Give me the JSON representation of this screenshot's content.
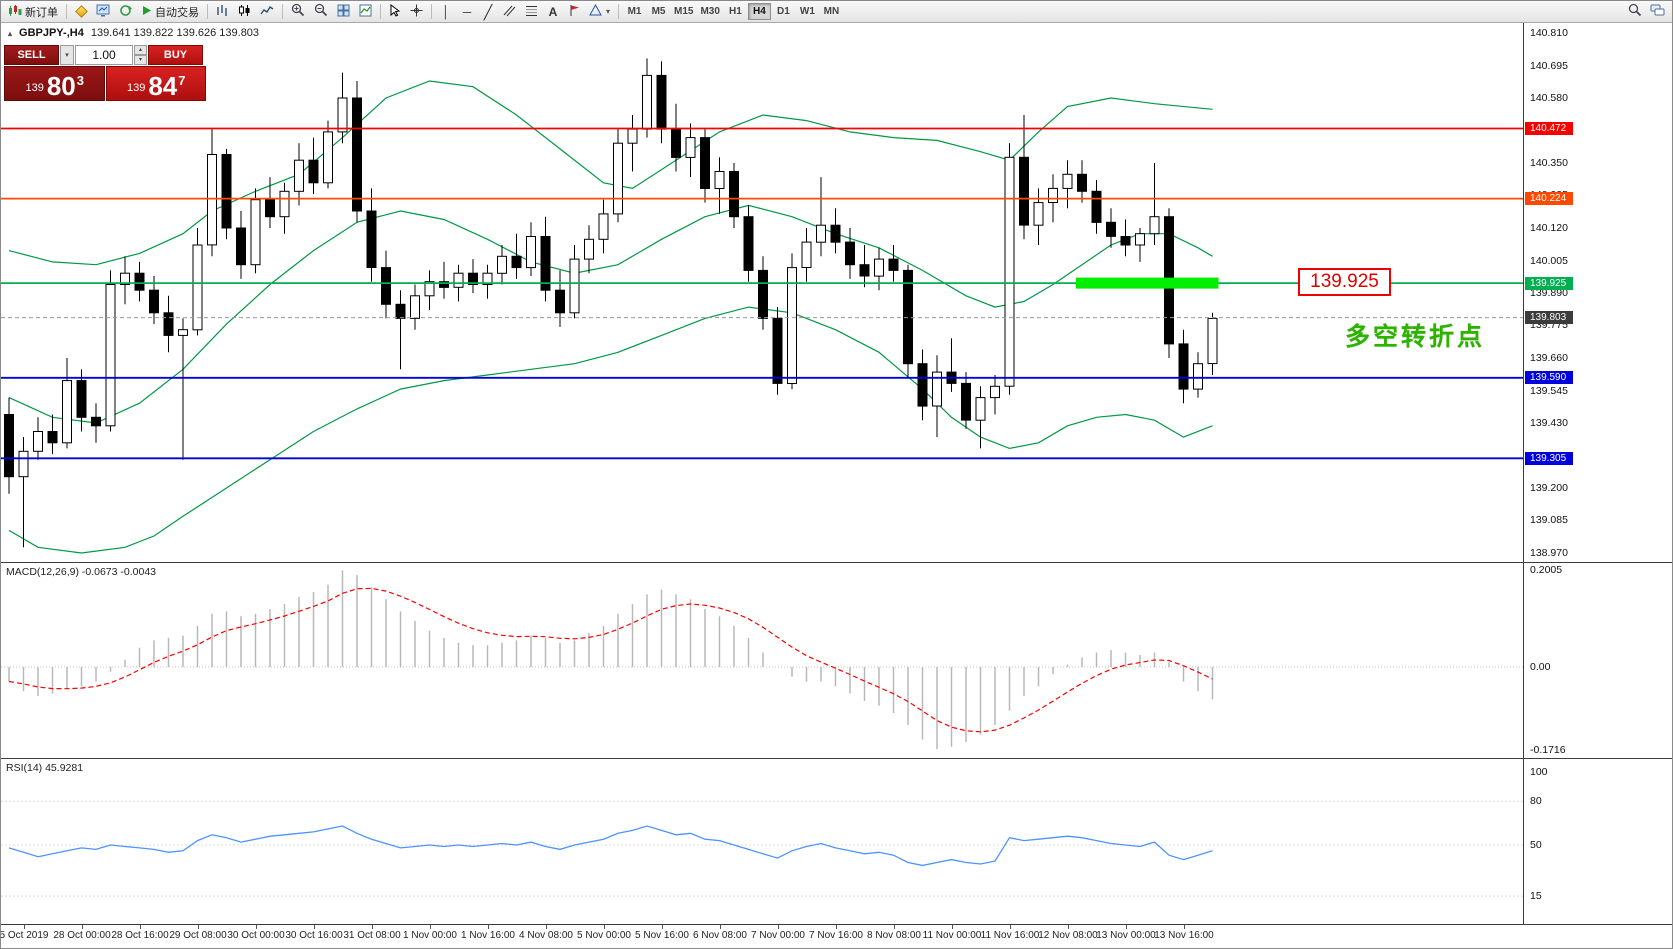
{
  "toolbar": {
    "new_order": "新订单",
    "autotrade": "自动交易",
    "timeframes": [
      "M1",
      "M5",
      "M15",
      "M30",
      "H1",
      "H4",
      "D1",
      "W1",
      "MN"
    ],
    "active_timeframe": "H4"
  },
  "icons": {
    "dropdown_arrow": "▾",
    "spin_up": "▴",
    "spin_down": "▾",
    "vertical_line": "│",
    "horizontal_line": "─",
    "trendline": "╱",
    "text_tool": "A",
    "symbol_marker": "▴"
  },
  "symbol_header": {
    "symbol": "GBPJPY-,H4",
    "ohlc": "139.641 139.822 139.626 139.803"
  },
  "trade_panel": {
    "sell_label": "SELL",
    "buy_label": "BUY",
    "volume": "1.00",
    "sell_price": {
      "prefix": "139",
      "big": "80",
      "sup": "3"
    },
    "buy_price": {
      "prefix": "139",
      "big": "84",
      "sup": "7"
    }
  },
  "annotations": {
    "price_box": "139.925",
    "turning_point": "多空转折点"
  },
  "chart_data": {
    "type": "candlestick",
    "symbol": "GBPJPY",
    "timeframe": "H4",
    "price_axis": {
      "min": 138.97,
      "max": 140.81,
      "ticks": [
        "140.810",
        "140.695",
        "140.580",
        "140.465",
        "140.350",
        "140.235",
        "140.120",
        "140.005",
        "139.890",
        "139.775",
        "139.660",
        "139.545",
        "139.430",
        "139.315",
        "139.200",
        "139.085",
        "138.970"
      ]
    },
    "candle_colors": {
      "up": "#ffffff",
      "down": "#000000",
      "outline": "#000000"
    },
    "levels": [
      {
        "price": 140.472,
        "label": "140.472",
        "color": "#f80000"
      },
      {
        "price": 140.224,
        "label": "140.224",
        "color": "#ff4800"
      },
      {
        "price": 139.925,
        "label": "139.925",
        "color": "#00b050"
      },
      {
        "price": 139.803,
        "label": "139.803",
        "color": "#3c3c3c",
        "style": "dashed",
        "line_color": "#9a9a9a"
      },
      {
        "price": 139.59,
        "label": "139.590",
        "color": "#0000dd"
      },
      {
        "price": 139.305,
        "label": "139.305",
        "color": "#0000dd"
      }
    ],
    "highlight": {
      "from_index": 74,
      "to_index": 83,
      "price": 139.925,
      "color": "#00ee00"
    },
    "candles": [
      [
        139.46,
        139.52,
        139.18,
        139.24
      ],
      [
        139.24,
        139.38,
        138.99,
        139.33
      ],
      [
        139.33,
        139.45,
        139.3,
        139.4
      ],
      [
        139.4,
        139.46,
        139.32,
        139.36
      ],
      [
        139.36,
        139.66,
        139.34,
        139.58
      ],
      [
        139.58,
        139.62,
        139.4,
        139.45
      ],
      [
        139.45,
        139.5,
        139.36,
        139.42
      ],
      [
        139.42,
        139.97,
        139.4,
        139.92
      ],
      [
        139.92,
        140.02,
        139.85,
        139.96
      ],
      [
        139.96,
        140.0,
        139.86,
        139.9
      ],
      [
        139.9,
        139.95,
        139.78,
        139.82
      ],
      [
        139.82,
        139.88,
        139.68,
        139.74
      ],
      [
        139.74,
        139.8,
        139.3,
        139.76
      ],
      [
        139.76,
        140.12,
        139.74,
        140.06
      ],
      [
        140.06,
        140.47,
        140.02,
        140.38
      ],
      [
        140.38,
        140.4,
        140.08,
        140.12
      ],
      [
        140.12,
        140.18,
        139.94,
        139.99
      ],
      [
        139.99,
        140.26,
        139.96,
        140.22
      ],
      [
        140.22,
        140.3,
        140.12,
        140.16
      ],
      [
        140.16,
        140.28,
        140.1,
        140.25
      ],
      [
        140.25,
        140.42,
        140.2,
        140.36
      ],
      [
        140.36,
        140.44,
        140.24,
        140.28
      ],
      [
        140.28,
        140.5,
        140.26,
        140.46
      ],
      [
        140.46,
        140.67,
        140.42,
        140.58
      ],
      [
        140.58,
        140.64,
        140.14,
        140.18
      ],
      [
        140.18,
        140.26,
        139.93,
        139.98
      ],
      [
        139.98,
        140.04,
        139.8,
        139.85
      ],
      [
        139.85,
        139.9,
        139.62,
        139.8
      ],
      [
        139.8,
        139.92,
        139.76,
        139.88
      ],
      [
        139.88,
        139.97,
        139.83,
        139.93
      ],
      [
        139.93,
        140.0,
        139.87,
        139.91
      ],
      [
        139.91,
        139.99,
        139.86,
        139.96
      ],
      [
        139.96,
        140.01,
        139.89,
        139.92
      ],
      [
        139.92,
        139.99,
        139.87,
        139.96
      ],
      [
        139.96,
        140.06,
        139.92,
        140.02
      ],
      [
        140.02,
        140.1,
        139.94,
        139.98
      ],
      [
        139.98,
        140.14,
        139.95,
        140.09
      ],
      [
        140.09,
        140.16,
        139.86,
        139.9
      ],
      [
        139.9,
        139.97,
        139.77,
        139.82
      ],
      [
        139.82,
        140.06,
        139.8,
        140.01
      ],
      [
        140.01,
        140.13,
        139.96,
        140.08
      ],
      [
        140.08,
        140.22,
        140.03,
        140.17
      ],
      [
        140.17,
        140.47,
        140.14,
        140.42
      ],
      [
        140.42,
        140.52,
        140.32,
        140.47
      ],
      [
        140.47,
        140.72,
        140.44,
        140.66
      ],
      [
        140.66,
        140.71,
        140.42,
        140.47
      ],
      [
        140.47,
        140.56,
        140.32,
        140.37
      ],
      [
        140.37,
        140.49,
        140.3,
        140.44
      ],
      [
        140.44,
        140.47,
        140.21,
        140.26
      ],
      [
        140.26,
        140.37,
        140.17,
        140.32
      ],
      [
        140.32,
        140.35,
        140.12,
        140.16
      ],
      [
        140.16,
        140.2,
        139.93,
        139.97
      ],
      [
        139.97,
        140.02,
        139.76,
        139.8
      ],
      [
        139.8,
        139.84,
        139.53,
        139.57
      ],
      [
        139.57,
        140.03,
        139.55,
        139.98
      ],
      [
        139.98,
        140.12,
        139.93,
        140.07
      ],
      [
        140.07,
        140.3,
        140.02,
        140.13
      ],
      [
        140.13,
        140.19,
        140.03,
        140.07
      ],
      [
        140.07,
        140.12,
        139.94,
        139.99
      ],
      [
        139.99,
        140.06,
        139.91,
        139.95
      ],
      [
        139.95,
        140.05,
        139.9,
        140.01
      ],
      [
        140.01,
        140.06,
        139.93,
        139.97
      ],
      [
        139.97,
        139.99,
        139.59,
        139.64
      ],
      [
        139.64,
        139.69,
        139.44,
        139.49
      ],
      [
        139.49,
        139.67,
        139.38,
        139.61
      ],
      [
        139.61,
        139.73,
        139.54,
        139.57
      ],
      [
        139.57,
        139.61,
        139.41,
        139.44
      ],
      [
        139.44,
        139.56,
        139.34,
        139.52
      ],
      [
        139.52,
        139.6,
        139.46,
        139.56
      ],
      [
        139.56,
        140.42,
        139.53,
        140.37
      ],
      [
        140.37,
        140.52,
        140.08,
        140.13
      ],
      [
        140.13,
        140.26,
        140.06,
        140.21
      ],
      [
        140.21,
        140.31,
        140.14,
        140.26
      ],
      [
        140.26,
        140.36,
        140.19,
        140.31
      ],
      [
        140.31,
        140.36,
        140.21,
        140.25
      ],
      [
        140.25,
        140.29,
        140.1,
        140.14
      ],
      [
        140.14,
        140.19,
        140.05,
        140.09
      ],
      [
        140.09,
        140.15,
        140.02,
        140.06
      ],
      [
        140.06,
        140.12,
        140.0,
        140.1
      ],
      [
        140.1,
        140.35,
        140.06,
        140.16
      ],
      [
        140.16,
        140.19,
        139.66,
        139.71
      ],
      [
        139.71,
        139.76,
        139.5,
        139.55
      ],
      [
        139.55,
        139.68,
        139.52,
        139.64
      ],
      [
        139.64,
        139.82,
        139.6,
        139.8
      ]
    ],
    "bollinger": {
      "color": "#009944",
      "upper": [
        [
          0,
          140.04
        ],
        [
          3,
          140.0
        ],
        [
          6,
          139.99
        ],
        [
          9,
          140.03
        ],
        [
          12,
          140.1
        ],
        [
          14,
          140.18
        ],
        [
          17,
          140.25
        ],
        [
          20,
          140.31
        ],
        [
          23,
          140.44
        ],
        [
          26,
          140.58
        ],
        [
          29,
          140.64
        ],
        [
          32,
          140.62
        ],
        [
          35,
          140.52
        ],
        [
          38,
          140.4
        ],
        [
          41,
          140.28
        ],
        [
          43,
          140.26
        ],
        [
          46,
          140.36
        ],
        [
          49,
          140.46
        ],
        [
          52,
          140.52
        ],
        [
          55,
          140.5
        ],
        [
          58,
          140.46
        ],
        [
          61,
          140.44
        ],
        [
          64,
          140.43
        ],
        [
          67,
          140.39
        ],
        [
          69,
          140.36
        ],
        [
          71,
          140.46
        ],
        [
          73,
          140.55
        ],
        [
          76,
          140.58
        ],
        [
          79,
          140.56
        ],
        [
          83,
          140.54
        ]
      ],
      "middle": [
        [
          0,
          139.52
        ],
        [
          3,
          139.45
        ],
        [
          6,
          139.43
        ],
        [
          9,
          139.5
        ],
        [
          12,
          139.62
        ],
        [
          15,
          139.78
        ],
        [
          18,
          139.92
        ],
        [
          21,
          140.04
        ],
        [
          24,
          140.14
        ],
        [
          27,
          140.18
        ],
        [
          30,
          140.15
        ],
        [
          33,
          140.08
        ],
        [
          36,
          140.0
        ],
        [
          39,
          139.96
        ],
        [
          42,
          139.99
        ],
        [
          45,
          140.08
        ],
        [
          48,
          140.16
        ],
        [
          51,
          140.2
        ],
        [
          54,
          140.16
        ],
        [
          57,
          140.1
        ],
        [
          60,
          140.05
        ],
        [
          63,
          139.97
        ],
        [
          66,
          139.88
        ],
        [
          68,
          139.84
        ],
        [
          70,
          139.86
        ],
        [
          72,
          139.92
        ],
        [
          74,
          139.99
        ],
        [
          76,
          140.06
        ],
        [
          78,
          140.1
        ],
        [
          80,
          140.1
        ],
        [
          82,
          140.05
        ],
        [
          83,
          140.02
        ]
      ],
      "lower": [
        [
          0,
          139.05
        ],
        [
          2,
          138.99
        ],
        [
          5,
          138.97
        ],
        [
          8,
          138.99
        ],
        [
          10,
          139.03
        ],
        [
          12,
          139.1
        ],
        [
          15,
          139.2
        ],
        [
          18,
          139.3
        ],
        [
          21,
          139.4
        ],
        [
          24,
          139.48
        ],
        [
          27,
          139.55
        ],
        [
          30,
          139.58
        ],
        [
          33,
          139.6
        ],
        [
          36,
          139.62
        ],
        [
          39,
          139.64
        ],
        [
          42,
          139.68
        ],
        [
          45,
          139.74
        ],
        [
          48,
          139.8
        ],
        [
          51,
          139.84
        ],
        [
          54,
          139.82
        ],
        [
          57,
          139.76
        ],
        [
          60,
          139.68
        ],
        [
          63,
          139.55
        ],
        [
          65,
          139.45
        ],
        [
          67,
          139.38
        ],
        [
          69,
          139.34
        ],
        [
          71,
          139.36
        ],
        [
          73,
          139.42
        ],
        [
          75,
          139.45
        ],
        [
          77,
          139.46
        ],
        [
          79,
          139.44
        ],
        [
          81,
          139.38
        ],
        [
          83,
          139.42
        ]
      ]
    },
    "macd": {
      "label": "MACD(12,26,9) -0.0673 -0.0043",
      "hist_color": "#b8b8b8",
      "signal_color": "#ff0000",
      "axis": [
        {
          "value": 0.2005,
          "label": "0.2005"
        },
        {
          "value": 0,
          "label": "0.00"
        },
        {
          "value": -0.1716,
          "label": "-0.1716"
        }
      ],
      "histogram": [
        -0.03,
        -0.05,
        -0.06,
        -0.055,
        -0.045,
        -0.04,
        -0.03,
        -0.01,
        0.015,
        0.04,
        0.055,
        0.06,
        0.065,
        0.085,
        0.11,
        0.115,
        0.105,
        0.11,
        0.12,
        0.13,
        0.145,
        0.155,
        0.17,
        0.2,
        0.19,
        0.165,
        0.14,
        0.115,
        0.095,
        0.075,
        0.06,
        0.05,
        0.045,
        0.045,
        0.05,
        0.055,
        0.065,
        0.06,
        0.05,
        0.055,
        0.07,
        0.085,
        0.11,
        0.13,
        0.15,
        0.16,
        0.15,
        0.14,
        0.12,
        0.105,
        0.085,
        0.06,
        0.03,
        0.0,
        -0.02,
        -0.03,
        -0.03,
        -0.04,
        -0.055,
        -0.07,
        -0.08,
        -0.095,
        -0.12,
        -0.15,
        -0.17,
        -0.165,
        -0.155,
        -0.14,
        -0.12,
        -0.09,
        -0.06,
        -0.04,
        -0.015,
        0.005,
        0.02,
        0.03,
        0.035,
        0.03,
        0.025,
        0.03,
        0.01,
        -0.03,
        -0.05,
        -0.067
      ]
    },
    "rsi": {
      "label": "RSI(14) 45.9281",
      "color": "#4d94ff",
      "axis": [
        {
          "value": 100,
          "label": "100"
        },
        {
          "value": 80,
          "label": "80"
        },
        {
          "value": 50,
          "label": "50"
        },
        {
          "value": 15,
          "label": "15"
        }
      ],
      "values": [
        48,
        45,
        42,
        44,
        46,
        48,
        47,
        50,
        49,
        48,
        47,
        45,
        46,
        53,
        57,
        55,
        52,
        54,
        56,
        57,
        58,
        59,
        61,
        63,
        58,
        54,
        51,
        48,
        49,
        50,
        49,
        50,
        49,
        50,
        51,
        50,
        52,
        49,
        47,
        50,
        52,
        54,
        58,
        60,
        63,
        60,
        57,
        58,
        54,
        53,
        50,
        47,
        44,
        41,
        46,
        49,
        51,
        48,
        46,
        44,
        45,
        43,
        38,
        36,
        38,
        40,
        38,
        37,
        39,
        55,
        53,
        54,
        55,
        56,
        55,
        53,
        51,
        50,
        49,
        52,
        43,
        40,
        43,
        46
      ]
    },
    "time_labels": [
      {
        "i": 1,
        "label": "5 Oct 2019"
      },
      {
        "i": 5,
        "label": "28 Oct 00:00"
      },
      {
        "i": 9,
        "label": "28 Oct 16:00"
      },
      {
        "i": 13,
        "label": "29 Oct 08:00"
      },
      {
        "i": 17,
        "label": "30 Oct 00:00"
      },
      {
        "i": 21,
        "label": "30 Oct 16:00"
      },
      {
        "i": 25,
        "label": "31 Oct 08:00"
      },
      {
        "i": 29,
        "label": "1 Nov 00:00"
      },
      {
        "i": 33,
        "label": "1 Nov 16:00"
      },
      {
        "i": 37,
        "label": "4 Nov 08:00"
      },
      {
        "i": 41,
        "label": "5 Nov 00:00"
      },
      {
        "i": 45,
        "label": "5 Nov 16:00"
      },
      {
        "i": 49,
        "label": "6 Nov 08:00"
      },
      {
        "i": 53,
        "label": "7 Nov 00:00"
      },
      {
        "i": 57,
        "label": "7 Nov 16:00"
      },
      {
        "i": 61,
        "label": "8 Nov 08:00"
      },
      {
        "i": 65,
        "label": "11 Nov 00:00"
      },
      {
        "i": 69,
        "label": "11 Nov 16:00"
      },
      {
        "i": 73,
        "label": "12 Nov 08:00"
      },
      {
        "i": 77,
        "label": "13 Nov 00:00"
      },
      {
        "i": 81,
        "label": "13 Nov 16:00"
      }
    ]
  }
}
